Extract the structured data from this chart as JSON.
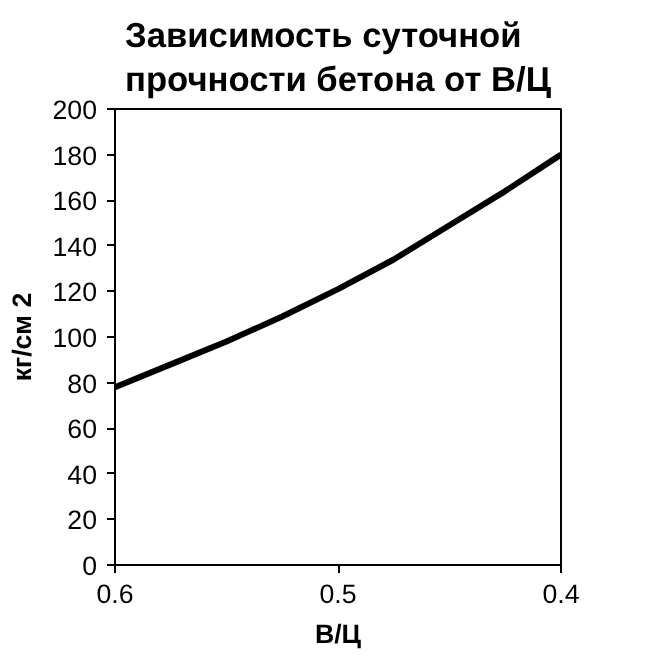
{
  "chart_data": {
    "type": "line",
    "title": "Зависимость суточной\nпрочности бетона от В/Ц",
    "xlabel": "В/Ц",
    "ylabel": "кг/см 2",
    "x": [
      0.6,
      0.575,
      0.55,
      0.525,
      0.5,
      0.475,
      0.45,
      0.425,
      0.4
    ],
    "series": [
      {
        "color": "#000000",
        "values": [
          78,
          88,
          98,
          109,
          121,
          134,
          149,
          164,
          180
        ]
      }
    ],
    "xlim": [
      0.6,
      0.4
    ],
    "xticks": [
      0.6,
      0.5,
      0.4
    ],
    "ylim": [
      0,
      200
    ],
    "yticks": [
      0,
      20,
      40,
      60,
      80,
      100,
      120,
      140,
      160,
      180,
      200
    ],
    "grid": false,
    "marker": "none",
    "line_style": "solid"
  }
}
